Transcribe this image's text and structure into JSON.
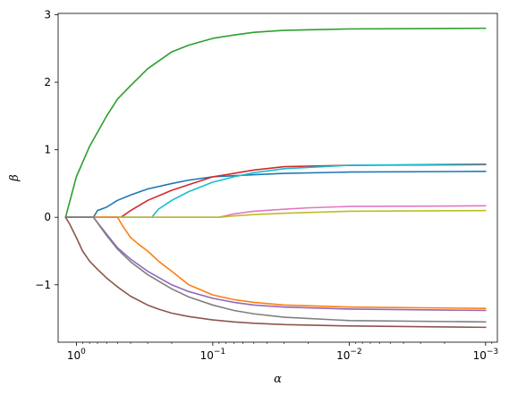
{
  "chart_data": {
    "type": "line",
    "title": "",
    "xlabel": "α",
    "ylabel": "β",
    "xscale": "log",
    "x_reversed": true,
    "xlim": [
      1.36,
      0.00082
    ],
    "ylim": [
      -1.85,
      3.02
    ],
    "grid": false,
    "x_ticks": [
      {
        "value": 1,
        "base": "10",
        "exp": "0"
      },
      {
        "value": 0.1,
        "base": "10",
        "exp": "−1"
      },
      {
        "value": 0.01,
        "base": "10",
        "exp": "−2"
      },
      {
        "value": 0.001,
        "base": "10",
        "exp": "−3"
      }
    ],
    "y_ticks": [
      {
        "value": -1,
        "label": "−1"
      },
      {
        "value": 0,
        "label": "0"
      },
      {
        "value": 1,
        "label": "1"
      },
      {
        "value": 2,
        "label": "2"
      },
      {
        "value": 3,
        "label": "3"
      }
    ],
    "series": [
      {
        "color": "#2ca02c",
        "points": [
          [
            1.2,
            0
          ],
          [
            1.0,
            0.6
          ],
          [
            0.8,
            1.05
          ],
          [
            0.6,
            1.5
          ],
          [
            0.5,
            1.75
          ],
          [
            0.4,
            1.95
          ],
          [
            0.3,
            2.2
          ],
          [
            0.2,
            2.45
          ],
          [
            0.15,
            2.55
          ],
          [
            0.1,
            2.65
          ],
          [
            0.07,
            2.7
          ],
          [
            0.05,
            2.74
          ],
          [
            0.03,
            2.77
          ],
          [
            0.01,
            2.79
          ],
          [
            0.001,
            2.8
          ]
        ]
      },
      {
        "color": "#1f77b4",
        "points": [
          [
            1.2,
            0
          ],
          [
            0.75,
            0
          ],
          [
            0.7,
            0.1
          ],
          [
            0.6,
            0.15
          ],
          [
            0.5,
            0.25
          ],
          [
            0.4,
            0.33
          ],
          [
            0.3,
            0.42
          ],
          [
            0.2,
            0.5
          ],
          [
            0.15,
            0.55
          ],
          [
            0.1,
            0.6
          ],
          [
            0.05,
            0.63
          ],
          [
            0.03,
            0.65
          ],
          [
            0.01,
            0.67
          ],
          [
            0.001,
            0.68
          ]
        ]
      },
      {
        "color": "#d62728",
        "points": [
          [
            1.2,
            0
          ],
          [
            0.47,
            0
          ],
          [
            0.4,
            0.1
          ],
          [
            0.3,
            0.25
          ],
          [
            0.2,
            0.4
          ],
          [
            0.1,
            0.6
          ],
          [
            0.07,
            0.65
          ],
          [
            0.05,
            0.7
          ],
          [
            0.03,
            0.75
          ],
          [
            0.01,
            0.77
          ],
          [
            0.001,
            0.78
          ]
        ]
      },
      {
        "color": "#17becf",
        "points": [
          [
            1.2,
            0
          ],
          [
            0.28,
            0
          ],
          [
            0.25,
            0.12
          ],
          [
            0.2,
            0.25
          ],
          [
            0.15,
            0.38
          ],
          [
            0.1,
            0.52
          ],
          [
            0.07,
            0.6
          ],
          [
            0.05,
            0.66
          ],
          [
            0.03,
            0.72
          ],
          [
            0.01,
            0.77
          ],
          [
            0.001,
            0.79
          ]
        ]
      },
      {
        "color": "#e377c2",
        "points": [
          [
            1.2,
            0
          ],
          [
            0.09,
            0
          ],
          [
            0.07,
            0.05
          ],
          [
            0.05,
            0.09
          ],
          [
            0.03,
            0.12
          ],
          [
            0.02,
            0.14
          ],
          [
            0.01,
            0.16
          ],
          [
            0.001,
            0.17
          ]
        ]
      },
      {
        "color": "#bcbd22",
        "points": [
          [
            1.2,
            0
          ],
          [
            0.09,
            0
          ],
          [
            0.07,
            0.02
          ],
          [
            0.05,
            0.04
          ],
          [
            0.03,
            0.06
          ],
          [
            0.01,
            0.09
          ],
          [
            0.001,
            0.1
          ]
        ]
      },
      {
        "color": "#ff7f0e",
        "points": [
          [
            1.2,
            0
          ],
          [
            0.5,
            0
          ],
          [
            0.45,
            -0.15
          ],
          [
            0.4,
            -0.3
          ],
          [
            0.35,
            -0.4
          ],
          [
            0.3,
            -0.5
          ],
          [
            0.25,
            -0.65
          ],
          [
            0.2,
            -0.8
          ],
          [
            0.15,
            -1.0
          ],
          [
            0.1,
            -1.15
          ],
          [
            0.07,
            -1.22
          ],
          [
            0.05,
            -1.26
          ],
          [
            0.03,
            -1.3
          ],
          [
            0.01,
            -1.33
          ],
          [
            0.001,
            -1.35
          ]
        ]
      },
      {
        "color": "#9467bd",
        "points": [
          [
            1.2,
            0
          ],
          [
            0.75,
            0
          ],
          [
            0.6,
            -0.25
          ],
          [
            0.5,
            -0.45
          ],
          [
            0.4,
            -0.62
          ],
          [
            0.3,
            -0.8
          ],
          [
            0.2,
            -1.0
          ],
          [
            0.15,
            -1.1
          ],
          [
            0.1,
            -1.2
          ],
          [
            0.07,
            -1.26
          ],
          [
            0.05,
            -1.3
          ],
          [
            0.03,
            -1.33
          ],
          [
            0.01,
            -1.36
          ],
          [
            0.001,
            -1.38
          ]
        ]
      },
      {
        "color": "#7f7f7f",
        "points": [
          [
            1.2,
            0
          ],
          [
            0.75,
            0
          ],
          [
            0.6,
            -0.27
          ],
          [
            0.5,
            -0.47
          ],
          [
            0.4,
            -0.66
          ],
          [
            0.3,
            -0.85
          ],
          [
            0.2,
            -1.06
          ],
          [
            0.15,
            -1.18
          ],
          [
            0.1,
            -1.3
          ],
          [
            0.07,
            -1.38
          ],
          [
            0.05,
            -1.43
          ],
          [
            0.03,
            -1.48
          ],
          [
            0.01,
            -1.53
          ],
          [
            0.001,
            -1.55
          ]
        ]
      },
      {
        "color": "#8c564b",
        "points": [
          [
            1.2,
            0
          ],
          [
            1.12,
            -0.1
          ],
          [
            1.0,
            -0.3
          ],
          [
            0.9,
            -0.5
          ],
          [
            0.8,
            -0.65
          ],
          [
            0.7,
            -0.77
          ],
          [
            0.6,
            -0.9
          ],
          [
            0.5,
            -1.03
          ],
          [
            0.4,
            -1.17
          ],
          [
            0.3,
            -1.3
          ],
          [
            0.25,
            -1.36
          ],
          [
            0.2,
            -1.42
          ],
          [
            0.15,
            -1.47
          ],
          [
            0.1,
            -1.52
          ],
          [
            0.07,
            -1.55
          ],
          [
            0.05,
            -1.57
          ],
          [
            0.03,
            -1.59
          ],
          [
            0.01,
            -1.61
          ],
          [
            0.001,
            -1.63
          ]
        ]
      }
    ]
  }
}
